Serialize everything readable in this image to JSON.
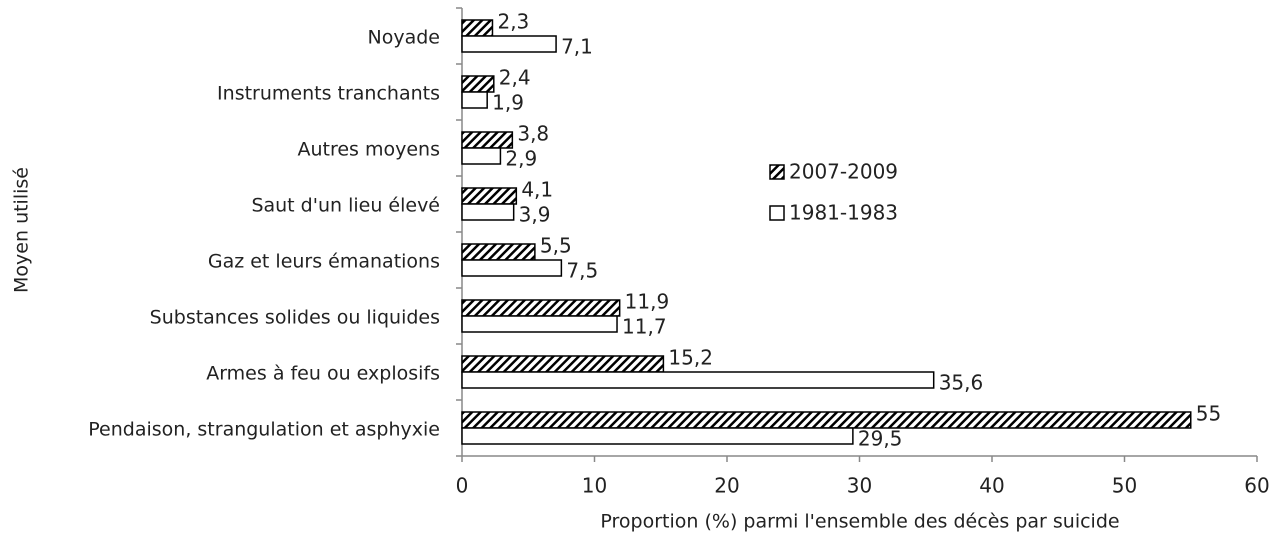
{
  "chart_data": {
    "type": "hbar",
    "x_label": "Proportion (%) parmi l'ensemble des décès par suicide",
    "y_label": "Moyen utilisé",
    "categories": [
      "Noyade",
      "Instruments tranchants",
      "Autres moyens",
      "Saut d'un lieu élevé",
      "Gaz et leurs émanations",
      "Substances solides ou liquides",
      "Armes à feu ou explosifs",
      "Pendaison, strangulation et asphyxie"
    ],
    "series": [
      {
        "name": "2007-2009",
        "color": "#000000",
        "hatch": true,
        "values": [
          2.3,
          2.4,
          3.8,
          4.1,
          5.5,
          11.9,
          15.2,
          55
        ],
        "value_labels": [
          "2,3",
          "2,4",
          "3,8",
          "4,1",
          "5,5",
          "11,9",
          "15,2",
          "55"
        ]
      },
      {
        "name": "1981-1983",
        "color": "#ffffff",
        "hatch": false,
        "values": [
          7.1,
          1.9,
          2.9,
          3.9,
          7.5,
          11.7,
          35.6,
          29.5
        ],
        "value_labels": [
          "7,1",
          "1,9",
          "2,9",
          "3,9",
          "7,5",
          "11,7",
          "35,6",
          "29,5"
        ]
      }
    ],
    "xlim": [
      0,
      60
    ],
    "xticks": [
      0,
      10,
      20,
      30,
      40,
      50,
      60
    ],
    "grid": false
  }
}
